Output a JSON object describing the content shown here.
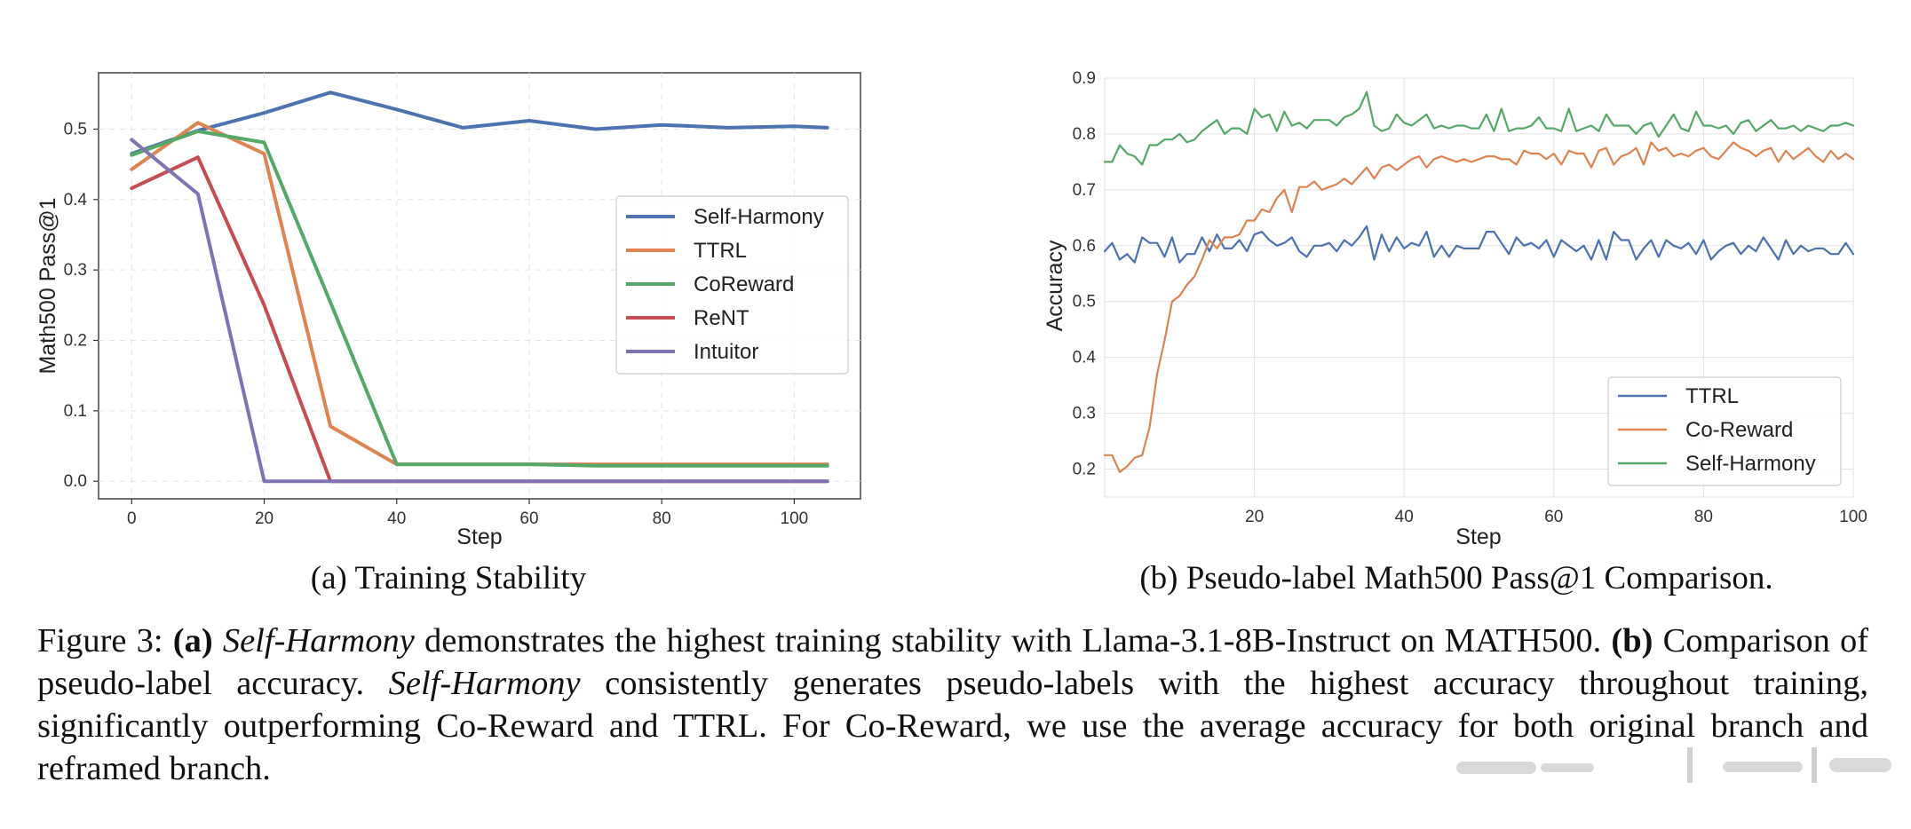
{
  "figure": {
    "subcaption_a": "(a) Training Stability",
    "subcaption_b": "(b) Pseudo-label Math500 Pass@1 Comparison.",
    "caption": {
      "label": "Figure 3:",
      "part_a_marker": "(a)",
      "part_a_method": "Self-Harmony",
      "part_a_text": "demonstrates the highest training stability with Llama-3.1-8B-Instruct on MATH500.",
      "part_b_marker": "(b)",
      "part_b_text_1": "Comparison of pseudo-label accuracy.",
      "part_b_method": "Self-Harmony",
      "part_b_text_2": "consistently generates pseudo-labels with the highest accuracy throughout training, significantly outperforming Co-Reward and TTRL. For Co-Reward, we use the average accuracy for both original branch and reframed branch."
    }
  },
  "chart_data": [
    {
      "type": "line",
      "title": "",
      "xlabel": "Step",
      "ylabel": "Math500 Pass@1",
      "xlim": [
        -5,
        110
      ],
      "ylim": [
        -0.025,
        0.58
      ],
      "xticks": [
        0,
        20,
        40,
        60,
        80,
        100
      ],
      "yticks": [
        0.0,
        0.1,
        0.2,
        0.3,
        0.4,
        0.5
      ],
      "grid": true,
      "legend_position": "center-right",
      "series": [
        {
          "name": "Self-Harmony",
          "color": "#4c72b0",
          "x": [
            0,
            10,
            20,
            30,
            40,
            50,
            60,
            70,
            80,
            90,
            100,
            105
          ],
          "y": [
            0.465,
            0.498,
            0.523,
            0.552,
            0.528,
            0.502,
            0.512,
            0.5,
            0.506,
            0.502,
            0.504,
            0.502
          ]
        },
        {
          "name": "TTRL",
          "color": "#dd8452",
          "x": [
            0,
            10,
            20,
            30,
            40,
            50,
            60,
            70,
            80,
            90,
            100,
            105
          ],
          "y": [
            0.443,
            0.509,
            0.465,
            0.078,
            0.024,
            0.024,
            0.024,
            0.024,
            0.024,
            0.024,
            0.024,
            0.024
          ]
        },
        {
          "name": "CoReward",
          "color": "#55a868",
          "x": [
            0,
            10,
            20,
            30,
            40,
            50,
            60,
            70,
            80,
            90,
            100,
            105
          ],
          "y": [
            0.463,
            0.497,
            0.481,
            0.254,
            0.024,
            0.024,
            0.024,
            0.022,
            0.022,
            0.022,
            0.022,
            0.022
          ]
        },
        {
          "name": "ReNT",
          "color": "#c44e52",
          "x": [
            0,
            10,
            20,
            30,
            40,
            50,
            60,
            70,
            80,
            90,
            100,
            105
          ],
          "y": [
            0.416,
            0.46,
            0.25,
            0.0,
            0.0,
            0.0,
            0.0,
            0.0,
            0.0,
            0.0,
            0.0,
            0.0
          ]
        },
        {
          "name": "Intuitor",
          "color": "#8172b3",
          "x": [
            0,
            10,
            20,
            30,
            40,
            50,
            60,
            70,
            80,
            90,
            100,
            105
          ],
          "y": [
            0.485,
            0.408,
            0.0,
            0.0,
            0.0,
            0.0,
            0.0,
            0.0,
            0.0,
            0.0,
            0.0,
            0.0
          ]
        }
      ]
    },
    {
      "type": "line",
      "title": "",
      "xlabel": "Step",
      "ylabel": "Accuracy",
      "xlim": [
        0,
        100
      ],
      "ylim": [
        0.15,
        0.9
      ],
      "xticks": [
        20,
        40,
        60,
        80,
        100
      ],
      "yticks": [
        0.2,
        0.3,
        0.4,
        0.5,
        0.6,
        0.7,
        0.8,
        0.9
      ],
      "grid": true,
      "legend_position": "lower-right",
      "series": [
        {
          "name": "TTRL",
          "color": "#4c72b0",
          "x": [
            0,
            1,
            2,
            3,
            4,
            5,
            6,
            7,
            8,
            9,
            10,
            11,
            12,
            13,
            14,
            15,
            16,
            17,
            18,
            19,
            20,
            21,
            22,
            23,
            24,
            25,
            26,
            27,
            28,
            29,
            30,
            31,
            32,
            33,
            34,
            35,
            36,
            37,
            38,
            39,
            40,
            41,
            42,
            43,
            44,
            45,
            46,
            47,
            48,
            49,
            50,
            51,
            52,
            53,
            54,
            55,
            56,
            57,
            58,
            59,
            60,
            61,
            62,
            63,
            64,
            65,
            66,
            67,
            68,
            69,
            70,
            71,
            72,
            73,
            74,
            75,
            76,
            77,
            78,
            79,
            80,
            81,
            82,
            83,
            84,
            85,
            86,
            87,
            88,
            89,
            90,
            91,
            92,
            93,
            94,
            95,
            96,
            97,
            98,
            99,
            100
          ],
          "y": [
            0.59,
            0.605,
            0.575,
            0.585,
            0.57,
            0.615,
            0.605,
            0.605,
            0.58,
            0.615,
            0.57,
            0.585,
            0.585,
            0.615,
            0.59,
            0.62,
            0.595,
            0.595,
            0.61,
            0.59,
            0.62,
            0.625,
            0.61,
            0.6,
            0.605,
            0.615,
            0.59,
            0.58,
            0.6,
            0.6,
            0.605,
            0.59,
            0.61,
            0.6,
            0.615,
            0.635,
            0.575,
            0.62,
            0.59,
            0.615,
            0.595,
            0.605,
            0.6,
            0.625,
            0.58,
            0.6,
            0.58,
            0.6,
            0.595,
            0.595,
            0.595,
            0.625,
            0.625,
            0.605,
            0.585,
            0.615,
            0.6,
            0.605,
            0.595,
            0.61,
            0.58,
            0.61,
            0.6,
            0.59,
            0.6,
            0.575,
            0.61,
            0.575,
            0.625,
            0.61,
            0.61,
            0.575,
            0.595,
            0.61,
            0.58,
            0.61,
            0.6,
            0.595,
            0.605,
            0.585,
            0.61,
            0.575,
            0.59,
            0.6,
            0.605,
            0.585,
            0.6,
            0.59,
            0.615,
            0.595,
            0.575,
            0.61,
            0.585,
            0.6,
            0.59,
            0.595,
            0.595,
            0.585,
            0.585,
            0.605,
            0.585
          ]
        },
        {
          "name": "Co-Reward",
          "color": "#dd8452",
          "x": [
            0,
            1,
            2,
            3,
            4,
            5,
            6,
            7,
            8,
            9,
            10,
            11,
            12,
            13,
            14,
            15,
            16,
            17,
            18,
            19,
            20,
            21,
            22,
            23,
            24,
            25,
            26,
            27,
            28,
            29,
            30,
            31,
            32,
            33,
            34,
            35,
            36,
            37,
            38,
            39,
            40,
            41,
            42,
            43,
            44,
            45,
            46,
            47,
            48,
            49,
            50,
            51,
            52,
            53,
            54,
            55,
            56,
            57,
            58,
            59,
            60,
            61,
            62,
            63,
            64,
            65,
            66,
            67,
            68,
            69,
            70,
            71,
            72,
            73,
            74,
            75,
            76,
            77,
            78,
            79,
            80,
            81,
            82,
            83,
            84,
            85,
            86,
            87,
            88,
            89,
            90,
            91,
            92,
            93,
            94,
            95,
            96,
            97,
            98,
            99,
            100
          ],
          "y": [
            0.225,
            0.225,
            0.195,
            0.205,
            0.22,
            0.225,
            0.275,
            0.37,
            0.43,
            0.5,
            0.51,
            0.53,
            0.545,
            0.575,
            0.61,
            0.595,
            0.615,
            0.615,
            0.62,
            0.645,
            0.645,
            0.665,
            0.66,
            0.685,
            0.7,
            0.66,
            0.705,
            0.705,
            0.715,
            0.7,
            0.705,
            0.71,
            0.72,
            0.71,
            0.725,
            0.74,
            0.72,
            0.74,
            0.745,
            0.735,
            0.745,
            0.755,
            0.76,
            0.74,
            0.755,
            0.76,
            0.755,
            0.75,
            0.755,
            0.75,
            0.755,
            0.76,
            0.76,
            0.755,
            0.755,
            0.745,
            0.77,
            0.765,
            0.765,
            0.755,
            0.765,
            0.745,
            0.77,
            0.765,
            0.765,
            0.74,
            0.77,
            0.775,
            0.745,
            0.76,
            0.765,
            0.775,
            0.745,
            0.785,
            0.77,
            0.775,
            0.76,
            0.765,
            0.76,
            0.77,
            0.775,
            0.76,
            0.755,
            0.77,
            0.785,
            0.775,
            0.77,
            0.76,
            0.77,
            0.775,
            0.75,
            0.77,
            0.755,
            0.765,
            0.775,
            0.76,
            0.75,
            0.77,
            0.755,
            0.765,
            0.755
          ]
        },
        {
          "name": "Self-Harmony",
          "color": "#55a868",
          "x": [
            0,
            1,
            2,
            3,
            4,
            5,
            6,
            7,
            8,
            9,
            10,
            11,
            12,
            13,
            14,
            15,
            16,
            17,
            18,
            19,
            20,
            21,
            22,
            23,
            24,
            25,
            26,
            27,
            28,
            29,
            30,
            31,
            32,
            33,
            34,
            35,
            36,
            37,
            38,
            39,
            40,
            41,
            42,
            43,
            44,
            45,
            46,
            47,
            48,
            49,
            50,
            51,
            52,
            53,
            54,
            55,
            56,
            57,
            58,
            59,
            60,
            61,
            62,
            63,
            64,
            65,
            66,
            67,
            68,
            69,
            70,
            71,
            72,
            73,
            74,
            75,
            76,
            77,
            78,
            79,
            80,
            81,
            82,
            83,
            84,
            85,
            86,
            87,
            88,
            89,
            90,
            91,
            92,
            93,
            94,
            95,
            96,
            97,
            98,
            99,
            100
          ],
          "y": [
            0.75,
            0.75,
            0.78,
            0.765,
            0.76,
            0.745,
            0.78,
            0.78,
            0.79,
            0.79,
            0.8,
            0.785,
            0.79,
            0.805,
            0.815,
            0.825,
            0.8,
            0.81,
            0.81,
            0.8,
            0.845,
            0.83,
            0.835,
            0.805,
            0.84,
            0.815,
            0.82,
            0.81,
            0.825,
            0.825,
            0.825,
            0.815,
            0.83,
            0.835,
            0.845,
            0.875,
            0.815,
            0.805,
            0.81,
            0.835,
            0.82,
            0.815,
            0.825,
            0.835,
            0.81,
            0.815,
            0.81,
            0.815,
            0.815,
            0.81,
            0.81,
            0.835,
            0.805,
            0.845,
            0.805,
            0.81,
            0.81,
            0.815,
            0.83,
            0.81,
            0.81,
            0.805,
            0.845,
            0.805,
            0.81,
            0.815,
            0.805,
            0.835,
            0.815,
            0.815,
            0.815,
            0.8,
            0.815,
            0.82,
            0.795,
            0.815,
            0.835,
            0.81,
            0.805,
            0.84,
            0.815,
            0.815,
            0.81,
            0.815,
            0.8,
            0.82,
            0.825,
            0.805,
            0.815,
            0.825,
            0.81,
            0.81,
            0.815,
            0.805,
            0.815,
            0.81,
            0.805,
            0.815,
            0.815,
            0.82,
            0.815
          ]
        }
      ]
    }
  ]
}
